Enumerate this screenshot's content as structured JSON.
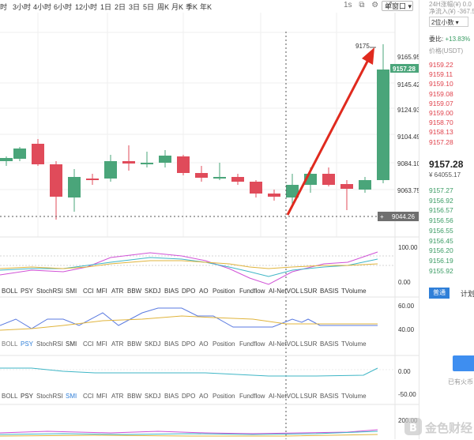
{
  "toolbar": {
    "timeframes": [
      "时",
      "3小时",
      "4小时",
      "6小时",
      "12小时",
      "1日",
      "2日",
      "3日",
      "5日",
      "周K",
      "月K",
      "季K",
      "年K"
    ],
    "interval_label": "1s",
    "window_label": "单窗口"
  },
  "price_axis": {
    "labels": [
      "9165.95",
      "9145.42",
      "9124.93",
      "9104.49",
      "9084.10",
      "9063.75"
    ],
    "current_price": "9157.28",
    "crosshair_price": "9044.26",
    "crosshair_plus": "+",
    "peak_label": "9175"
  },
  "indicator_axis_1": [
    "100.00",
    "0.00"
  ],
  "indicator_axis_2": [
    "60.00",
    "40.00"
  ],
  "indicator_axis_3": [
    "0.00",
    "-50.00"
  ],
  "indicator_axis_4": [
    "200.00"
  ],
  "indicator_tabs": [
    "BOLL",
    "PSY",
    "StochRSI",
    "SMI",
    "CCI",
    "MFI",
    "ATR",
    "BBW",
    "SKDJ",
    "BIAS",
    "DPO",
    "AO",
    "Position",
    "Fundflow",
    "AI-NetVOL",
    "LSUR",
    "BASIS",
    "TVolume"
  ],
  "indicator_tabs_2": [
    "BOLL",
    "PSY",
    "StochRSI",
    "SMI",
    "CCI",
    "MFI",
    "ATR",
    "BBW",
    "SKDJ",
    "BIAS",
    "DPO",
    "AO",
    "Position",
    "Fundflow",
    "AI-NetVOL",
    "LSUR",
    "BASIS",
    "TVolume"
  ],
  "indicator_tabs_3": [
    "BOLL",
    "PSY",
    "StochRSI",
    "SMI",
    "CCI",
    "MFI",
    "ATR",
    "BBW",
    "SKDJ",
    "BIAS",
    "DPO",
    "AO",
    "Position",
    "Fundflow",
    "AI-NetVOL",
    "LSUR",
    "BASIS",
    "TVolume"
  ],
  "right_panel": {
    "top_line_1": "24H涨幅(¥) 0.0",
    "top_line_2": "净流入(¥) -367.5",
    "decimal_select": "2位小数",
    "ratio_label": "委比:",
    "ratio_value": "+13.83%",
    "price_header": "价格(USDT)",
    "asks": [
      "9159.22",
      "9159.11",
      "9159.10",
      "9159.08",
      "9159.07",
      "9159.00",
      "9158.70",
      "9158.13",
      "9157.28"
    ],
    "last_price": "9157.28",
    "last_price_cny": "¥ 64055.17",
    "bids": [
      "9157.27",
      "9156.92",
      "9156.57",
      "9156.56",
      "9156.55",
      "9156.45",
      "9156.20",
      "9156.19",
      "9155.92"
    ],
    "tab_normal": "普通",
    "tab_plan": "计划",
    "footer": "已有火币"
  },
  "watermark": "金色财经",
  "colors": {
    "up": "#4aa57a",
    "down": "#e04b5a",
    "accent": "#2f7fd8",
    "arrow": "#e02a1e"
  }
}
